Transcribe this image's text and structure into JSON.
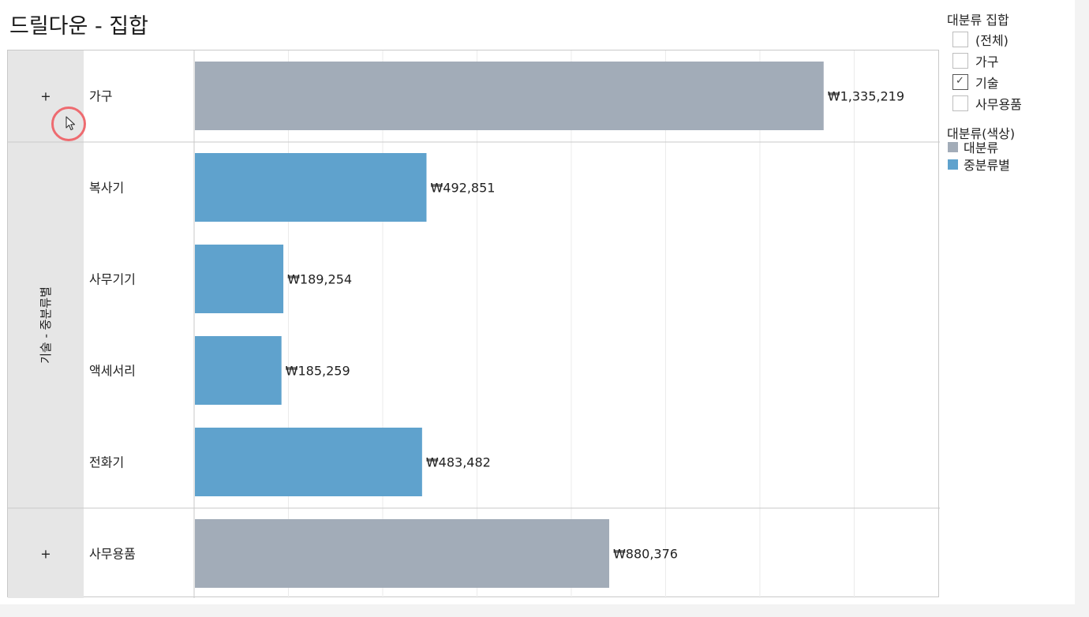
{
  "title": "드릴다운 - 집합",
  "colors": {
    "category": "#a2acb8",
    "subcategory": "#5fa2cd",
    "header_bg": "#e6e6e6",
    "grid": "#ebebeb",
    "border": "#c9c9c9"
  },
  "filter_legend": {
    "title": "대분류 집합",
    "items": [
      {
        "label": "(전체)",
        "checked": false
      },
      {
        "label": "가구",
        "checked": false
      },
      {
        "label": "기술",
        "checked": true
      },
      {
        "label": "사무용품",
        "checked": false
      }
    ]
  },
  "color_legend": {
    "title": "대분류(색상)",
    "items": [
      {
        "label": "대분류",
        "color": "#a2acb8"
      },
      {
        "label": "중분류별",
        "color": "#5fa2cd"
      }
    ]
  },
  "chart_data": {
    "type": "bar",
    "orientation": "horizontal",
    "xlim": [
      0,
      1580000
    ],
    "grid": true,
    "groups": [
      {
        "header": "+",
        "expanded": false,
        "rows": [
          {
            "label": "가구",
            "value": 1335219,
            "value_label": "₩1,335,219",
            "series": "대분류"
          }
        ]
      },
      {
        "header": "기술 - 중분류별",
        "expanded": true,
        "rows": [
          {
            "label": "복사기",
            "value": 492851,
            "value_label": "₩492,851",
            "series": "중분류별"
          },
          {
            "label": "사무기기",
            "value": 189254,
            "value_label": "₩189,254",
            "series": "중분류별"
          },
          {
            "label": "액세서리",
            "value": 185259,
            "value_label": "₩185,259",
            "series": "중분류별"
          },
          {
            "label": "전화기",
            "value": 483482,
            "value_label": "₩483,482",
            "series": "중분류별"
          }
        ]
      },
      {
        "header": "+",
        "expanded": false,
        "rows": [
          {
            "label": "사무용품",
            "value": 880376,
            "value_label": "₩880,376",
            "series": "대분류"
          }
        ]
      }
    ]
  }
}
